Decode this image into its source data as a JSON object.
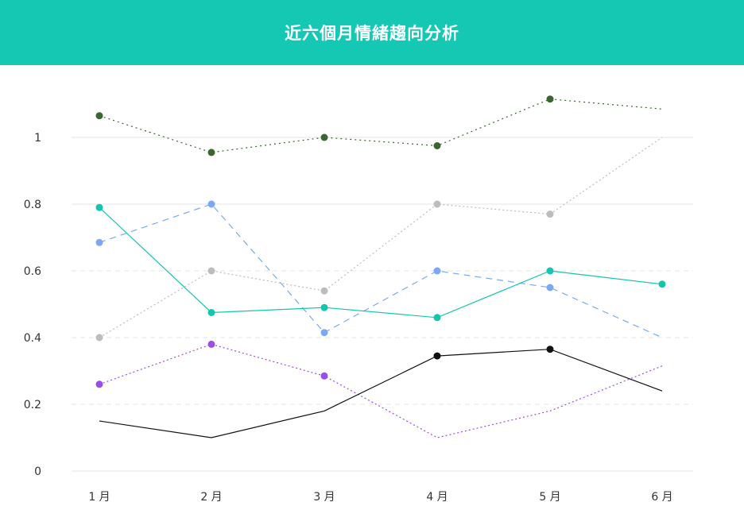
{
  "header": {
    "title": "近六個月情緒趨向分析"
  },
  "colors": {
    "header_bg": "#14c8b4",
    "grid": "#e6e6e6"
  },
  "chart_data": {
    "type": "line",
    "categories": [
      "1 月",
      "2 月",
      "3 月",
      "4 月",
      "5 月",
      "6 月"
    ],
    "y_ticks": [
      "0",
      "0.2",
      "0.4",
      "0.6",
      "0.8",
      "1"
    ],
    "ylim": [
      0,
      1.2
    ],
    "grid": true,
    "series": [
      {
        "values": [
          1.065,
          0.955,
          1.0,
          0.975,
          1.115,
          1.085
        ],
        "color": "#3a6630",
        "dash": "2,4",
        "markers": [
          true,
          true,
          true,
          true,
          true,
          false
        ]
      },
      {
        "values": [
          0.4,
          0.6,
          0.54,
          0.8,
          0.77,
          1.0
        ],
        "color": "#bdbdbd",
        "dash": "2,3",
        "markers": [
          true,
          true,
          true,
          true,
          true,
          false
        ]
      },
      {
        "values": [
          0.685,
          0.8,
          0.415,
          0.6,
          0.55,
          0.4
        ],
        "color": "#7aa8f5",
        "dash": "8,6",
        "markers": [
          true,
          true,
          true,
          true,
          true,
          false
        ]
      },
      {
        "values": [
          0.79,
          0.475,
          0.49,
          0.46,
          0.6,
          0.56
        ],
        "color": "#13c6ae",
        "dash": "",
        "markers": [
          true,
          true,
          true,
          true,
          true,
          true
        ]
      },
      {
        "values": [
          0.26,
          0.38,
          0.285,
          0.1,
          0.18,
          0.315
        ],
        "color": "#9b4de8",
        "dash": "2,3",
        "markers": [
          true,
          true,
          true,
          false,
          false,
          false
        ]
      },
      {
        "values": [
          0.15,
          0.1,
          0.18,
          0.345,
          0.365,
          0.24
        ],
        "color": "#111111",
        "dash": "",
        "markers": [
          false,
          false,
          false,
          true,
          true,
          false
        ]
      }
    ]
  }
}
